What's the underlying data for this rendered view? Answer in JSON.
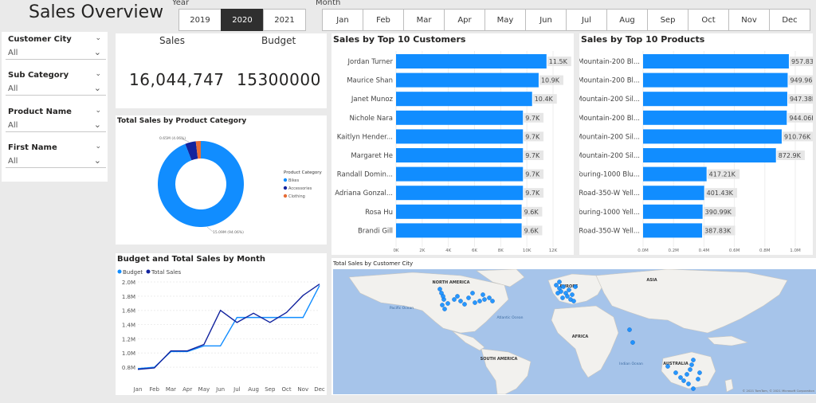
{
  "header": {
    "title": "Sales Overview"
  },
  "year_slicer": {
    "label": "Year",
    "options": [
      "2019",
      "2020",
      "2021"
    ],
    "selected": "2020"
  },
  "month_slicer": {
    "label": "Month",
    "options": [
      "Jan",
      "Feb",
      "Mar",
      "Apr",
      "May",
      "Jun",
      "Jul",
      "Aug",
      "Sep",
      "Oct",
      "Nov",
      "Dec"
    ]
  },
  "filters": [
    {
      "label": "Customer City",
      "value": "All"
    },
    {
      "label": "Sub Category",
      "value": "All"
    },
    {
      "label": "Product Name",
      "value": "All"
    },
    {
      "label": "First Name",
      "value": "All"
    }
  ],
  "kpis": {
    "sales_label": "Sales",
    "sales_value": "16,044,747",
    "budget_label": "Budget",
    "budget_value": "15300000"
  },
  "colors": {
    "bar": "#118DFF",
    "budget": "#118DFF",
    "total": "#12239E",
    "clothing": "#E66C37",
    "accessories": "#12239E",
    "bikes": "#118DFF"
  },
  "chart_data": [
    {
      "type": "bar",
      "orientation": "horizontal",
      "title": "Sales by Top 10 Customers",
      "categories": [
        "Jordan Turner",
        "Maurice Shan",
        "Janet Munoz",
        "Nichole Nara",
        "Kaitlyn Hender...",
        "Margaret He",
        "Randall Domin...",
        "Adriana Gonzal...",
        "Rosa Hu",
        "Brandi Gill"
      ],
      "values": [
        11500,
        10900,
        10400,
        9700,
        9700,
        9700,
        9700,
        9700,
        9600,
        9600
      ],
      "data_labels": [
        "11.5K",
        "10.9K",
        "10.4K",
        "9.7K",
        "9.7K",
        "9.7K",
        "9.7K",
        "9.7K",
        "9.6K",
        "9.6K"
      ],
      "xlim": [
        0,
        12000
      ],
      "xticks": [
        "0K",
        "2K",
        "4K",
        "6K",
        "8K",
        "10K",
        "12K"
      ]
    },
    {
      "type": "bar",
      "orientation": "horizontal",
      "title": "Sales by Top 10 Products",
      "categories": [
        "Mountain-200 Bl...",
        "Mountain-200 Bl...",
        "Mountain-200 Sil...",
        "Mountain-200 Bl...",
        "Mountain-200 Sil...",
        "Mountain-200 Sil...",
        "Touring-1000 Blu...",
        "Road-350-W Yell...",
        "Touring-1000 Yell...",
        "Road-350-W Yell..."
      ],
      "values": [
        957830,
        949960,
        947380,
        944060,
        910760,
        872900,
        417210,
        401430,
        390990,
        387830
      ],
      "data_labels": [
        "957.83K",
        "949.96K",
        "947.38K",
        "944.06K",
        "910.76K",
        "872.9K",
        "417.21K",
        "401.43K",
        "390.99K",
        "387.83K"
      ],
      "xlim": [
        0,
        1000000
      ],
      "xticks": [
        "0.0M",
        "0.2M",
        "0.4M",
        "0.6M",
        "0.8M",
        "1.0M"
      ]
    },
    {
      "type": "pie",
      "title": "Total Sales by Product Category",
      "legend_title": "Product Category",
      "labels": [
        "Bikes",
        "Accessories",
        "Clothing"
      ],
      "values": [
        15.09,
        0.65,
        0.3
      ],
      "annotations": [
        "15.09M (94.06%)",
        "0.65M (4.06%)"
      ]
    },
    {
      "type": "line",
      "title": "Budget and Total Sales by Month",
      "categories": [
        "Jan",
        "Feb",
        "Mar",
        "Apr",
        "May",
        "Jun",
        "Jul",
        "Aug",
        "Sep",
        "Oct",
        "Nov",
        "Dec"
      ],
      "series": [
        {
          "name": "Budget",
          "values": [
            0.78,
            0.8,
            1.02,
            1.02,
            1.1,
            1.1,
            1.5,
            1.5,
            1.5,
            1.5,
            1.5,
            1.95
          ]
        },
        {
          "name": "Total Sales",
          "values": [
            0.77,
            0.79,
            1.03,
            1.03,
            1.12,
            1.6,
            1.43,
            1.56,
            1.43,
            1.57,
            1.81,
            1.97
          ]
        }
      ],
      "ylim": [
        0.7,
        2.0
      ],
      "yticks": [
        "0.8M",
        "1.0M",
        "1.2M",
        "1.4M",
        "1.6M",
        "1.8M",
        "2.0M"
      ]
    }
  ],
  "map": {
    "title": "Total Sales by Customer City",
    "labels": [
      "NORTH AMERICA",
      "EUROPE",
      "ASIA",
      "AFRICA",
      "SOUTH AMERICA",
      "AUSTRALIA",
      "Pacific Ocean",
      "Atlantic Ocean",
      "Indian Ocean"
    ],
    "footer": "© 2021 TomTom, © 2021 Microsoft Corporation"
  }
}
